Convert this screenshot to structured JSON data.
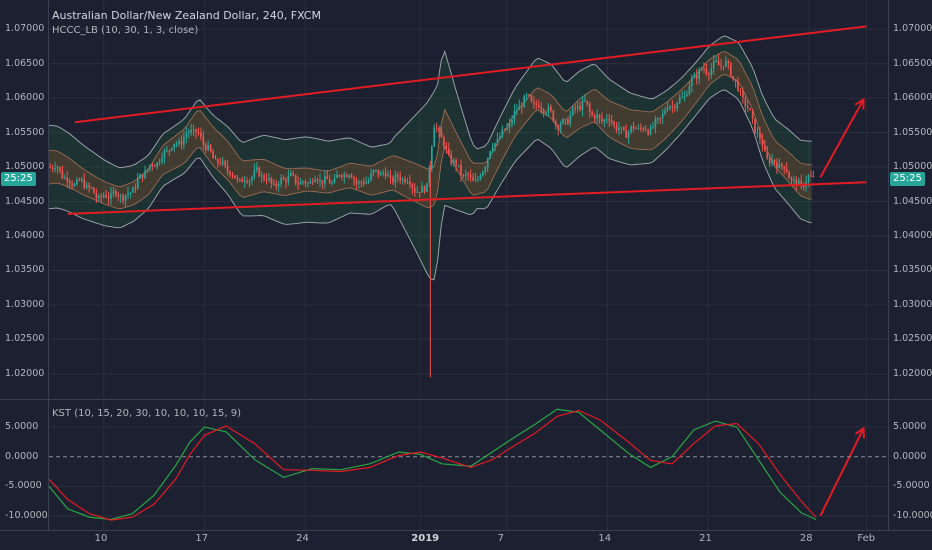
{
  "header": {
    "symbol_title": "Australian Dollar/New Zealand Dollar, 240, FXCM",
    "indicator_main": "HCCC_LB (10, 30, 1, 3, close)",
    "indicator_lower": "KST (10, 15, 20, 30, 10, 10, 10, 15, 9)"
  },
  "countdown_label": "25:25",
  "colors": {
    "background": "#1c2030",
    "grid": "#2a2e3d",
    "up_candle": "#26a69a",
    "down_candle": "#ef5350",
    "trendline": "#e31b23",
    "band_line": "#c5c9d3",
    "kst_line": "#28a745",
    "kst_signal": "#e31b23",
    "price_tag": "#26a69a"
  },
  "chart_data": [
    {
      "type": "candlestick",
      "pane": "price",
      "title": "Australian Dollar/New Zealand Dollar, 240, FXCM",
      "ylim": [
        1.0165,
        1.0735
      ],
      "y_ticks": [
        "1.07000",
        "1.06500",
        "1.06000",
        "1.05500",
        "1.05000",
        "1.04500",
        "1.04000",
        "1.03500",
        "1.03000",
        "1.02500",
        "1.02000"
      ],
      "x_ticks": [
        {
          "label": "10",
          "day": 10
        },
        {
          "label": "17",
          "day": 17
        },
        {
          "label": "24",
          "day": 24
        },
        {
          "label": "2019",
          "day": 32,
          "bold": true
        },
        {
          "label": "7",
          "day": 38
        },
        {
          "label": "14",
          "day": 45
        },
        {
          "label": "21",
          "day": 52
        },
        {
          "label": "28",
          "day": 59
        },
        {
          "label": "Feb",
          "day": 63
        }
      ],
      "xlim": [
        6.2,
        64.5
      ],
      "price_path": [
        [
          6.2,
          1.05
        ],
        [
          7.0,
          1.0492
        ],
        [
          8.0,
          1.0478
        ],
        [
          9.5,
          1.0462
        ],
        [
          10.5,
          1.0455
        ],
        [
          11.5,
          1.0462
        ],
        [
          12.5,
          1.0478
        ],
        [
          13.5,
          1.051
        ],
        [
          15.0,
          1.053
        ],
        [
          16.0,
          1.0558
        ],
        [
          17.0,
          1.053
        ],
        [
          18.0,
          1.051
        ],
        [
          19.0,
          1.0482
        ],
        [
          20.5,
          1.0488
        ],
        [
          22.0,
          1.0478
        ],
        [
          23.5,
          1.0482
        ],
        [
          25.0,
          1.0478
        ],
        [
          26.5,
          1.0488
        ],
        [
          28.0,
          1.048
        ],
        [
          29.5,
          1.0492
        ],
        [
          31.0,
          1.0478
        ],
        [
          32.0,
          1.0468
        ],
        [
          32.5,
          1.0475
        ],
        [
          33.0,
          1.056
        ],
        [
          34.0,
          1.052
        ],
        [
          35.0,
          1.0482
        ],
        [
          36.0,
          1.0485
        ],
        [
          37.0,
          1.0525
        ],
        [
          38.0,
          1.0562
        ],
        [
          39.5,
          1.06
        ],
        [
          40.5,
          1.0588
        ],
        [
          41.5,
          1.056
        ],
        [
          42.5,
          1.0578
        ],
        [
          43.5,
          1.059
        ],
        [
          44.5,
          1.057
        ],
        [
          46.0,
          1.0555
        ],
        [
          47.5,
          1.0552
        ],
        [
          48.5,
          1.0568
        ],
        [
          49.5,
          1.0588
        ],
        [
          50.5,
          1.0612
        ],
        [
          51.5,
          1.0638
        ],
        [
          52.5,
          1.0652
        ],
        [
          53.5,
          1.064
        ],
        [
          54.5,
          1.06
        ],
        [
          55.2,
          1.0555
        ],
        [
          56.0,
          1.052
        ],
        [
          57.0,
          1.05
        ],
        [
          57.8,
          1.0482
        ],
        [
          58.5,
          1.0478
        ],
        [
          59.4,
          1.0482
        ]
      ],
      "spike": {
        "day": 32.7,
        "low": 1.0195
      },
      "trendlines": [
        {
          "from": [
            8.0,
            1.0565
          ],
          "to": [
            63.0,
            1.0704
          ]
        },
        {
          "from": [
            7.5,
            1.0432
          ],
          "to": [
            63.0,
            1.0478
          ]
        }
      ],
      "projection_arrow": {
        "from": [
          59.8,
          1.0485
        ],
        "to": [
          62.8,
          1.0598
        ]
      },
      "current_price_label": "25:25"
    },
    {
      "type": "line",
      "pane": "indicator",
      "title": "KST (10, 15, 20, 30, 10, 10, 10, 15, 9)",
      "ylim": [
        -12.2,
        9.4
      ],
      "y_ticks": [
        "5.0000",
        "0.0000",
        "-5.0000",
        "-10.0000"
      ],
      "zero_line": 0,
      "series": [
        {
          "values": [
            [
              6.2,
              -5
            ],
            [
              7.5,
              -8.8
            ],
            [
              9.0,
              -10.2
            ],
            [
              10.5,
              -10.6
            ],
            [
              12.0,
              -9.6
            ],
            [
              13.5,
              -6.5
            ],
            [
              15.0,
              -1.5
            ],
            [
              16.0,
              2.5
            ],
            [
              17.0,
              5.0
            ],
            [
              18.5,
              4.2
            ],
            [
              20.5,
              -0.5
            ],
            [
              22.5,
              -3.5
            ],
            [
              24.5,
              -2.0
            ],
            [
              26.5,
              -2.2
            ],
            [
              28.5,
              -1.2
            ],
            [
              30.5,
              0.8
            ],
            [
              32.0,
              0.4
            ],
            [
              33.5,
              -1.2
            ],
            [
              35.5,
              -1.6
            ],
            [
              37.0,
              0.8
            ],
            [
              38.5,
              3.2
            ],
            [
              40.0,
              5.5
            ],
            [
              41.5,
              8.0
            ],
            [
              43.0,
              7.5
            ],
            [
              44.5,
              4.5
            ],
            [
              46.5,
              0.5
            ],
            [
              48.0,
              -1.8
            ],
            [
              49.5,
              0.0
            ],
            [
              51.0,
              4.5
            ],
            [
              52.5,
              6.0
            ],
            [
              54.0,
              5.0
            ],
            [
              55.5,
              -0.5
            ],
            [
              57.0,
              -6.0
            ],
            [
              58.5,
              -9.5
            ],
            [
              59.5,
              -10.6
            ]
          ]
        },
        {
          "values": [
            [
              6.2,
              -3.8
            ],
            [
              7.5,
              -7.2
            ],
            [
              9.0,
              -9.6
            ],
            [
              10.5,
              -10.7
            ],
            [
              12.0,
              -10.2
            ],
            [
              13.5,
              -8.0
            ],
            [
              15.0,
              -3.8
            ],
            [
              16.0,
              0.4
            ],
            [
              17.0,
              3.6
            ],
            [
              18.5,
              5.2
            ],
            [
              20.5,
              2.2
            ],
            [
              22.5,
              -2.2
            ],
            [
              24.5,
              -2.3
            ],
            [
              26.5,
              -2.5
            ],
            [
              28.5,
              -1.8
            ],
            [
              30.5,
              0.2
            ],
            [
              32.0,
              0.8
            ],
            [
              33.5,
              -0.2
            ],
            [
              35.5,
              -1.8
            ],
            [
              37.0,
              -0.5
            ],
            [
              38.5,
              1.8
            ],
            [
              40.0,
              4.0
            ],
            [
              41.5,
              6.8
            ],
            [
              43.0,
              7.8
            ],
            [
              44.5,
              6.2
            ],
            [
              46.5,
              2.4
            ],
            [
              48.0,
              -0.6
            ],
            [
              49.5,
              -1.2
            ],
            [
              51.0,
              2.2
            ],
            [
              52.5,
              5.2
            ],
            [
              54.0,
              5.6
            ],
            [
              55.5,
              2.2
            ],
            [
              57.0,
              -3.0
            ],
            [
              58.5,
              -7.6
            ],
            [
              59.5,
              -10.2
            ]
          ]
        }
      ],
      "projection_arrow": {
        "from": [
          59.8,
          -10.0
        ],
        "to": [
          62.8,
          4.8
        ]
      }
    }
  ]
}
